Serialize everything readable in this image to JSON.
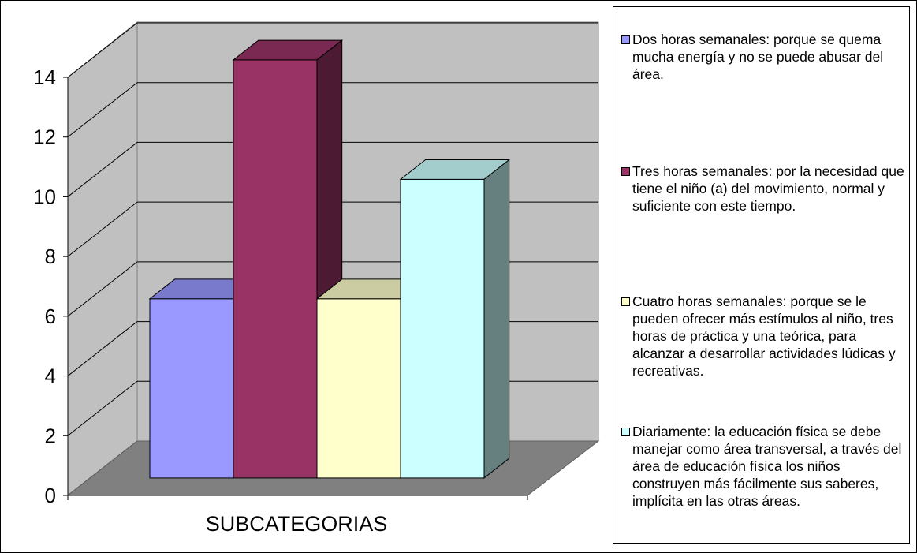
{
  "chart_data": {
    "type": "bar",
    "categories": [
      "SUBCATEGORIAS"
    ],
    "series": [
      {
        "name": "Dos horas semanales: porque se quema mucha energía y no se puede abusar del área.",
        "color": "#9999ff",
        "values": [
          6
        ]
      },
      {
        "name": "Tres horas semanales: por la necesidad que tiene el niño (a) del movimiento, normal y suficiente con este tiempo.",
        "color": "#993366",
        "values": [
          14
        ]
      },
      {
        "name": "Cuatro horas semanales: porque se le pueden ofrecer más estímulos al niño, tres horas de práctica y una teórica, para alcanzar a desarrollar actividades lúdicas y recreativas.",
        "color": "#ffffcc",
        "values": [
          6
        ]
      },
      {
        "name": "Diariamente: la educación física se debe manejar como área transversal, a través del área de educación física los niños construyen más fácilmente sus saberes, implícita en las otras áreas.",
        "color": "#ccffff",
        "values": [
          10
        ]
      }
    ],
    "ylim": [
      0,
      14
    ],
    "yticks": [
      0,
      2,
      4,
      6,
      8,
      10,
      12,
      14
    ],
    "grid": true
  }
}
